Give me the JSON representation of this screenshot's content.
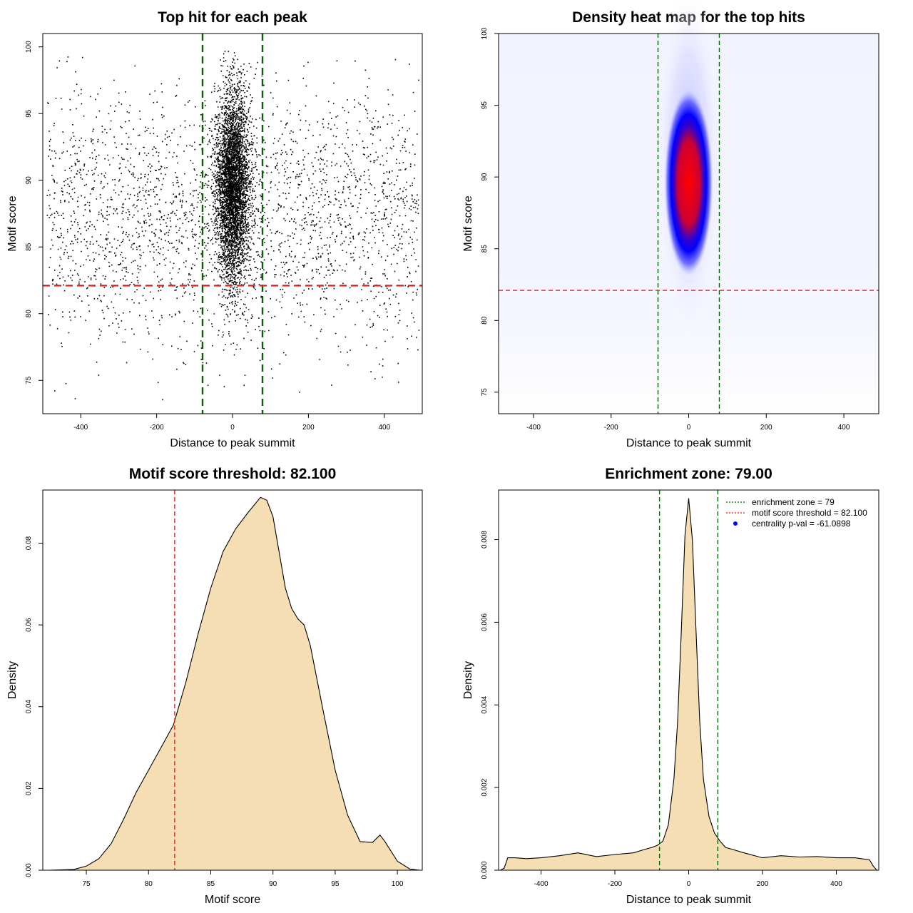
{
  "chart_data": [
    {
      "type": "scatter",
      "title": "Top hit for each peak",
      "xlabel": "Distance to peak summit",
      "ylabel": "Motif score",
      "xlim": [
        -500,
        500
      ],
      "ylim": [
        72.5,
        101
      ],
      "xticks": [
        -400,
        -200,
        0,
        200,
        400
      ],
      "yticks": [
        75,
        80,
        85,
        90,
        95,
        100
      ],
      "vlines": [
        -79,
        79
      ],
      "hline": 82.1,
      "vline_color": "#006400",
      "hline_color": "#d62728",
      "point_color": "#000000",
      "background_points": {
        "count": 2600,
        "x_range": [
          -490,
          490
        ],
        "y_center": 87.5,
        "y_sd": 4.8
      },
      "central_points": {
        "count": 4500,
        "x_center": 0,
        "x_sd": 22,
        "y_center": 89.6,
        "y_sd": 3.6
      },
      "grid": false
    },
    {
      "type": "heatmap",
      "title": "Density heat map for the top hits",
      "xlabel": "Distance to peak summit",
      "ylabel": "Motif score",
      "xlim": [
        -490,
        490
      ],
      "ylim": [
        73.5,
        100
      ],
      "xticks": [
        -400,
        -200,
        0,
        200,
        400
      ],
      "yticks": [
        75,
        80,
        85,
        90,
        95,
        100
      ],
      "vlines": [
        -79,
        79
      ],
      "hline": 82.1,
      "colormap": [
        "#ffffff",
        "#0000ff",
        "#ff0000"
      ],
      "peak": {
        "x": 0,
        "y": 89.6
      },
      "grid": false
    },
    {
      "type": "area",
      "title": "Motif score threshold: 82.100",
      "xlabel": "Motif score",
      "ylabel": "Density",
      "xlim": [
        71.5,
        102
      ],
      "ylim": [
        0,
        0.093
      ],
      "xticks": [
        75,
        80,
        85,
        90,
        95,
        100
      ],
      "yticks": [
        0,
        0.02,
        0.04,
        0.06,
        0.08
      ],
      "ytick_labels": [
        "0.00",
        "0.02",
        "0.04",
        "0.06",
        "0.08"
      ],
      "vline": 82.1,
      "fill_color": "#f5deb3",
      "x": [
        72,
        74,
        75,
        76,
        77,
        78,
        79,
        80,
        81,
        82,
        83,
        84,
        85,
        86,
        87,
        88,
        89,
        89.5,
        90,
        91,
        91.5,
        92,
        92.5,
        93,
        94,
        95,
        96,
        97,
        98,
        98.6,
        99,
        100,
        101,
        101.8
      ],
      "y": [
        0,
        0.0002,
        0.001,
        0.0028,
        0.0065,
        0.0125,
        0.019,
        0.0245,
        0.03,
        0.0355,
        0.046,
        0.058,
        0.069,
        0.078,
        0.0835,
        0.0875,
        0.0912,
        0.0905,
        0.0865,
        0.069,
        0.064,
        0.0615,
        0.06,
        0.055,
        0.0395,
        0.0245,
        0.0135,
        0.007,
        0.0068,
        0.0086,
        0.007,
        0.0022,
        0.0003,
        0
      ],
      "grid": false
    },
    {
      "type": "area",
      "title": "Enrichment zone: 79.00",
      "xlabel": "Distance to peak summit",
      "ylabel": "Density",
      "xlim": [
        -515,
        515
      ],
      "ylim": [
        0,
        0.0092
      ],
      "xticks": [
        -400,
        -200,
        0,
        200,
        400
      ],
      "yticks": [
        0,
        0.002,
        0.004,
        0.006,
        0.008
      ],
      "ytick_labels": [
        "0.000",
        "0.002",
        "0.004",
        "0.006",
        "0.008"
      ],
      "vlines": [
        -79,
        79
      ],
      "fill_color": "#f5deb3",
      "x": [
        -510,
        -500,
        -490,
        -470,
        -440,
        -400,
        -350,
        -300,
        -250,
        -200,
        -150,
        -120,
        -100,
        -85,
        -70,
        -55,
        -40,
        -30,
        -20,
        -10,
        0,
        10,
        20,
        30,
        40,
        55,
        70,
        85,
        100,
        120,
        150,
        200,
        250,
        300,
        350,
        400,
        450,
        490,
        500,
        510
      ],
      "y": [
        0,
        5e-05,
        0.0003,
        0.0003,
        0.00028,
        0.0003,
        0.00035,
        0.00042,
        0.00033,
        0.00038,
        0.00042,
        0.0005,
        0.00055,
        0.0006,
        0.0007,
        0.0011,
        0.0022,
        0.0036,
        0.0058,
        0.0081,
        0.009,
        0.008,
        0.0058,
        0.0036,
        0.0022,
        0.0013,
        0.0009,
        0.0007,
        0.00055,
        0.0005,
        0.00042,
        0.0003,
        0.00035,
        0.00032,
        0.00033,
        0.0003,
        0.0003,
        0.00025,
        0.0001,
        0
      ],
      "legend": {
        "placement": "top-right",
        "entries": [
          {
            "label": "enrichment zone = 79",
            "color": "#006400",
            "style": "dotted-line"
          },
          {
            "label": "motif score threshold = 82.100",
            "color": "#ff0000",
            "style": "dotted-line"
          },
          {
            "label": "centrality p-val = -61.0898",
            "color": "#0000ff",
            "style": "point"
          }
        ]
      },
      "grid": false
    }
  ]
}
